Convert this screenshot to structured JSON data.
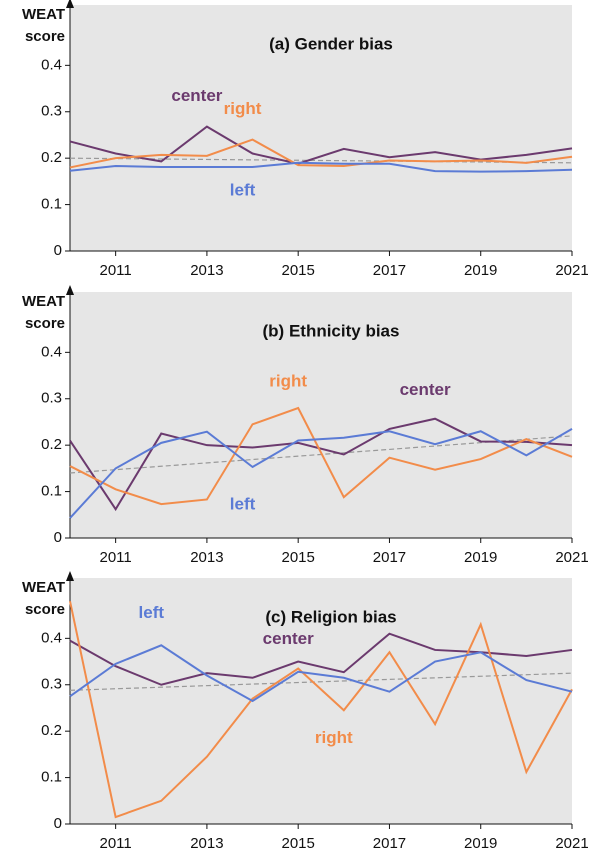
{
  "chart_data": [
    {
      "type": "line",
      "title": "(a) Gender bias",
      "ylabel": [
        "WEAT",
        "score"
      ],
      "x": [
        2010,
        2011,
        2012,
        2013,
        2014,
        2015,
        2016,
        2017,
        2018,
        2019,
        2020,
        2021
      ],
      "xlim": [
        2010,
        2021
      ],
      "xticks": [
        2011,
        2013,
        2015,
        2017,
        2019,
        2021
      ],
      "ylim": [
        0,
        0.53
      ],
      "yticks": [
        0,
        0.1,
        0.2,
        0.3,
        0.4
      ],
      "series": [
        {
          "name": "center",
          "color": "#6b3a6e",
          "values": [
            0.236,
            0.21,
            0.193,
            0.268,
            0.21,
            0.188,
            0.22,
            0.202,
            0.213,
            0.197,
            0.207,
            0.221
          ]
        },
        {
          "name": "right",
          "color": "#f28c4a",
          "values": [
            0.18,
            0.2,
            0.207,
            0.205,
            0.24,
            0.185,
            0.183,
            0.195,
            0.193,
            0.195,
            0.19,
            0.203
          ]
        },
        {
          "name": "left",
          "color": "#5b7bd5",
          "values": [
            0.173,
            0.183,
            0.181,
            0.181,
            0.181,
            0.19,
            0.188,
            0.188,
            0.172,
            0.171,
            0.172,
            0.175
          ]
        }
      ],
      "trend": [
        0.2,
        0.19
      ]
    },
    {
      "type": "line",
      "title": "(b) Ethnicity bias",
      "ylabel": [
        "WEAT",
        "score"
      ],
      "x": [
        2010,
        2011,
        2012,
        2013,
        2014,
        2015,
        2016,
        2017,
        2018,
        2019,
        2020,
        2021
      ],
      "xlim": [
        2010,
        2021
      ],
      "xticks": [
        2011,
        2013,
        2015,
        2017,
        2019,
        2021
      ],
      "ylim": [
        0,
        0.53
      ],
      "yticks": [
        0,
        0.1,
        0.2,
        0.3,
        0.4
      ],
      "series": [
        {
          "name": "center",
          "color": "#6b3a6e",
          "values": [
            0.21,
            0.062,
            0.225,
            0.2,
            0.195,
            0.205,
            0.18,
            0.235,
            0.257,
            0.208,
            0.207,
            0.2
          ]
        },
        {
          "name": "right",
          "color": "#f28c4a",
          "values": [
            0.155,
            0.105,
            0.073,
            0.083,
            0.245,
            0.28,
            0.088,
            0.173,
            0.147,
            0.17,
            0.213,
            0.175
          ]
        },
        {
          "name": "left",
          "color": "#5b7bd5",
          "values": [
            0.043,
            0.15,
            0.205,
            0.229,
            0.153,
            0.21,
            0.216,
            0.23,
            0.202,
            0.23,
            0.178,
            0.235
          ]
        }
      ],
      "trend": [
        0.14,
        0.22
      ]
    },
    {
      "type": "line",
      "title": "(c) Religion bias",
      "ylabel": [
        "WEAT",
        "score"
      ],
      "x": [
        2010,
        2011,
        2012,
        2013,
        2014,
        2015,
        2016,
        2017,
        2018,
        2019,
        2020,
        2021
      ],
      "xlim": [
        2010,
        2021
      ],
      "xticks": [
        2011,
        2013,
        2015,
        2017,
        2019,
        2021
      ],
      "ylim": [
        0,
        0.53
      ],
      "yticks": [
        0,
        0.1,
        0.2,
        0.3,
        0.4
      ],
      "series": [
        {
          "name": "center",
          "color": "#6b3a6e",
          "values": [
            0.395,
            0.34,
            0.3,
            0.325,
            0.315,
            0.35,
            0.327,
            0.41,
            0.375,
            0.37,
            0.362,
            0.375
          ]
        },
        {
          "name": "right",
          "color": "#f28c4a",
          "values": [
            0.48,
            0.015,
            0.05,
            0.145,
            0.27,
            0.335,
            0.245,
            0.37,
            0.215,
            0.43,
            0.112,
            0.29
          ]
        },
        {
          "name": "left",
          "color": "#5b7bd5",
          "values": [
            0.275,
            0.345,
            0.385,
            0.32,
            0.265,
            0.328,
            0.315,
            0.285,
            0.35,
            0.37,
            0.31,
            0.285
          ]
        }
      ],
      "trend": [
        0.288,
        0.325
      ]
    }
  ]
}
